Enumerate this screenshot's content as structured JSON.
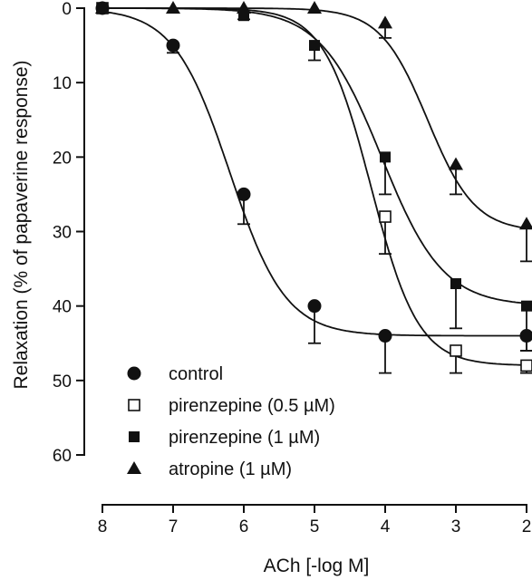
{
  "chart_data": {
    "type": "scatter",
    "xlabel": "ACh [-log M]",
    "ylabel": "Relaxation (% of papaverine response)",
    "x_reversed": true,
    "xlim": [
      8,
      2
    ],
    "ylim": [
      0,
      60
    ],
    "y_inverted": true,
    "x_ticks": [
      8,
      7,
      6,
      5,
      4,
      3,
      2
    ],
    "y_ticks": [
      0,
      10,
      20,
      30,
      40,
      50,
      60
    ],
    "grid": false,
    "legend_position": "bottom-left",
    "series": [
      {
        "name": "control",
        "marker": "filled-circle",
        "x": [
          8,
          7,
          6,
          5,
          4,
          2
        ],
        "y": [
          0,
          5,
          25,
          40,
          44,
          44
        ],
        "error": [
          0,
          1,
          4,
          5,
          5,
          2
        ],
        "fit": {
          "bottom": 0,
          "top": 44,
          "ec50": 6.2,
          "hill": 1.1
        }
      },
      {
        "name": "pirenzepine (0.5 µM)",
        "marker": "open-square",
        "x": [
          8,
          4,
          3,
          2
        ],
        "y": [
          0,
          28,
          46,
          48
        ],
        "error": [
          0,
          5,
          3,
          1
        ],
        "fit": {
          "bottom": 0,
          "top": 48,
          "ec50": 4.2,
          "hill": 1.3
        }
      },
      {
        "name": "pirenzepine (1 µM)",
        "marker": "filled-square",
        "x": [
          8,
          6,
          5,
          4,
          3,
          2
        ],
        "y": [
          0,
          1,
          5,
          20,
          37,
          40
        ],
        "error": [
          0,
          0.5,
          2,
          5,
          6,
          6
        ],
        "fit": {
          "bottom": 0,
          "top": 40,
          "ec50": 4.05,
          "hill": 1.0
        }
      },
      {
        "name": "atropine (1 µM)",
        "marker": "filled-triangle",
        "x": [
          8,
          7,
          6,
          5,
          4,
          3,
          2
        ],
        "y": [
          0,
          0,
          0,
          0,
          2,
          21,
          29
        ],
        "error": [
          0,
          0,
          0,
          0,
          2,
          4,
          5
        ],
        "fit": {
          "bottom": 0,
          "top": 30,
          "ec50": 3.4,
          "hill": 1.3
        }
      }
    ]
  }
}
